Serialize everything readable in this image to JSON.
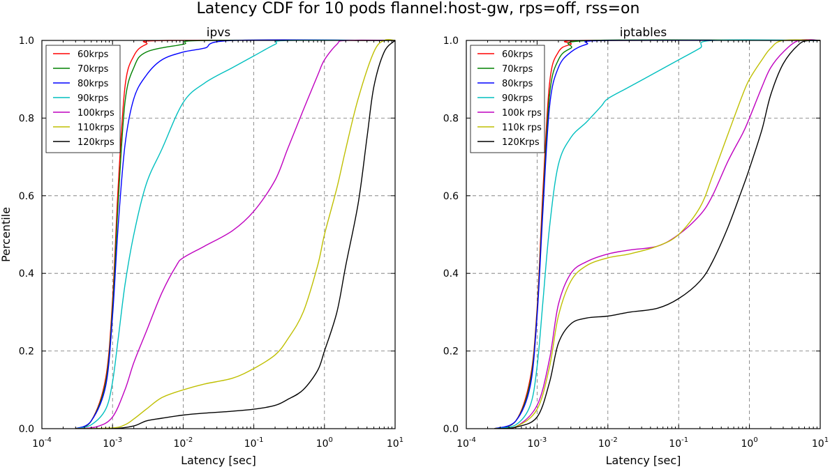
{
  "figure": {
    "title": "Latency CDF for 10 pods flannel:host-gw,  rps=off, rss=on"
  },
  "colors": {
    "red": "#ff0000",
    "green": "#008000",
    "blue": "#0000ff",
    "cyan": "#00bfbf",
    "magenta": "#bf00bf",
    "olive": "#bfbf00",
    "black": "#000000"
  },
  "chart_data": [
    {
      "type": "line",
      "title": "ipvs",
      "xlabel": "Latency [sec]",
      "ylabel": "Percentile",
      "xscale": "log",
      "xlim": [
        0.0001,
        10
      ],
      "ylim": [
        0.0,
        1.0
      ],
      "xticks": [
        "10^-4",
        "10^-3",
        "10^-2",
        "10^-1",
        "10^0",
        "10^1"
      ],
      "yticks": [
        "0.0",
        "0.2",
        "0.4",
        "0.6",
        "0.8",
        "1.0"
      ],
      "grid": true,
      "legend": "top-left",
      "series": [
        {
          "name": "60krps",
          "color": "#ff0000",
          "points": [
            [
              0.0003,
              0
            ],
            [
              0.0005,
              0.02
            ],
            [
              0.0008,
              0.13
            ],
            [
              0.001,
              0.33
            ],
            [
              0.0012,
              0.62
            ],
            [
              0.0015,
              0.88
            ],
            [
              0.002,
              0.96
            ],
            [
              0.003,
              0.99
            ],
            [
              0.006,
              1.0
            ],
            [
              10,
              1.0
            ]
          ]
        },
        {
          "name": "70krps",
          "color": "#008000",
          "points": [
            [
              0.0003,
              0
            ],
            [
              0.0005,
              0.02
            ],
            [
              0.0008,
              0.12
            ],
            [
              0.001,
              0.31
            ],
            [
              0.0012,
              0.58
            ],
            [
              0.0015,
              0.84
            ],
            [
              0.002,
              0.93
            ],
            [
              0.003,
              0.97
            ],
            [
              0.01,
              0.99
            ],
            [
              0.02,
              1.0
            ],
            [
              10,
              1.0
            ]
          ]
        },
        {
          "name": "80krps",
          "color": "#0000ff",
          "points": [
            [
              0.0003,
              0
            ],
            [
              0.0005,
              0.02
            ],
            [
              0.0008,
              0.11
            ],
            [
              0.001,
              0.29
            ],
            [
              0.0012,
              0.52
            ],
            [
              0.0015,
              0.73
            ],
            [
              0.002,
              0.85
            ],
            [
              0.003,
              0.91
            ],
            [
              0.005,
              0.95
            ],
            [
              0.01,
              0.97
            ],
            [
              0.02,
              0.98
            ],
            [
              0.05,
              1.0
            ],
            [
              10,
              1.0
            ]
          ]
        },
        {
          "name": "90krps",
          "color": "#00bfbf",
          "points": [
            [
              0.0003,
              0
            ],
            [
              0.0005,
              0.01
            ],
            [
              0.0008,
              0.05
            ],
            [
              0.001,
              0.12
            ],
            [
              0.0012,
              0.23
            ],
            [
              0.0015,
              0.37
            ],
            [
              0.002,
              0.5
            ],
            [
              0.003,
              0.63
            ],
            [
              0.005,
              0.72
            ],
            [
              0.01,
              0.84
            ],
            [
              0.02,
              0.89
            ],
            [
              0.05,
              0.93
            ],
            [
              0.1,
              0.96
            ],
            [
              0.2,
              0.99
            ],
            [
              0.3,
              1.0
            ],
            [
              10,
              1.0
            ]
          ]
        },
        {
          "name": "100krps",
          "color": "#bf00bf",
          "points": [
            [
              0.0003,
              0
            ],
            [
              0.0006,
              0.005
            ],
            [
              0.001,
              0.03
            ],
            [
              0.0015,
              0.1
            ],
            [
              0.002,
              0.17
            ],
            [
              0.003,
              0.25
            ],
            [
              0.005,
              0.35
            ],
            [
              0.008,
              0.42
            ],
            [
              0.01,
              0.44
            ],
            [
              0.02,
              0.47
            ],
            [
              0.05,
              0.51
            ],
            [
              0.1,
              0.56
            ],
            [
              0.2,
              0.64
            ],
            [
              0.3,
              0.72
            ],
            [
              0.5,
              0.82
            ],
            [
              0.8,
              0.91
            ],
            [
              1.0,
              0.95
            ],
            [
              1.5,
              0.99
            ],
            [
              2,
              1.0
            ],
            [
              10,
              1.0
            ]
          ]
        },
        {
          "name": "110krps",
          "color": "#bfbf00",
          "points": [
            [
              0.0003,
              0
            ],
            [
              0.001,
              0.002
            ],
            [
              0.0015,
              0.01
            ],
            [
              0.002,
              0.025
            ],
            [
              0.003,
              0.05
            ],
            [
              0.005,
              0.08
            ],
            [
              0.01,
              0.1
            ],
            [
              0.02,
              0.115
            ],
            [
              0.05,
              0.13
            ],
            [
              0.1,
              0.155
            ],
            [
              0.2,
              0.19
            ],
            [
              0.3,
              0.23
            ],
            [
              0.5,
              0.3
            ],
            [
              0.8,
              0.42
            ],
            [
              1.0,
              0.5
            ],
            [
              1.5,
              0.62
            ],
            [
              2,
              0.72
            ],
            [
              3,
              0.85
            ],
            [
              5,
              0.97
            ],
            [
              7,
              1.0
            ],
            [
              10,
              1.0
            ]
          ]
        },
        {
          "name": "120krps",
          "color": "#000000",
          "points": [
            [
              0.0003,
              0
            ],
            [
              0.001,
              0
            ],
            [
              0.002,
              0.007
            ],
            [
              0.003,
              0.02
            ],
            [
              0.005,
              0.027
            ],
            [
              0.01,
              0.035
            ],
            [
              0.02,
              0.04
            ],
            [
              0.05,
              0.045
            ],
            [
              0.1,
              0.05
            ],
            [
              0.2,
              0.06
            ],
            [
              0.3,
              0.075
            ],
            [
              0.5,
              0.1
            ],
            [
              0.8,
              0.15
            ],
            [
              1.0,
              0.2
            ],
            [
              1.5,
              0.3
            ],
            [
              2,
              0.42
            ],
            [
              3,
              0.58
            ],
            [
              4,
              0.75
            ],
            [
              5,
              0.88
            ],
            [
              7,
              0.97
            ],
            [
              10,
              1.0
            ]
          ]
        }
      ]
    },
    {
      "type": "line",
      "title": "iptables",
      "xlabel": "Latency [sec]",
      "ylabel": "",
      "xscale": "log",
      "xlim": [
        0.0001,
        10
      ],
      "ylim": [
        0.0,
        1.0
      ],
      "xticks": [
        "10^-4",
        "10^-3",
        "10^-2",
        "10^-1",
        "10^0",
        "10^1"
      ],
      "yticks": [
        "0.0",
        "0.2",
        "0.4",
        "0.6",
        "0.8",
        "1.0"
      ],
      "grid": true,
      "legend": "top-left",
      "series": [
        {
          "name": "60krps",
          "color": "#ff0000",
          "points": [
            [
              0.00025,
              0
            ],
            [
              0.0005,
              0.02
            ],
            [
              0.0008,
              0.13
            ],
            [
              0.001,
              0.31
            ],
            [
              0.0012,
              0.6
            ],
            [
              0.0015,
              0.89
            ],
            [
              0.002,
              0.97
            ],
            [
              0.003,
              0.99
            ],
            [
              0.005,
              1.0
            ],
            [
              10,
              1.0
            ]
          ]
        },
        {
          "name": "70krps",
          "color": "#008000",
          "points": [
            [
              0.00025,
              0
            ],
            [
              0.0005,
              0.02
            ],
            [
              0.0008,
              0.12
            ],
            [
              0.001,
              0.3
            ],
            [
              0.0012,
              0.57
            ],
            [
              0.0015,
              0.86
            ],
            [
              0.002,
              0.95
            ],
            [
              0.003,
              0.98
            ],
            [
              0.006,
              1.0
            ],
            [
              10,
              1.0
            ]
          ]
        },
        {
          "name": "80krps",
          "color": "#0000ff",
          "points": [
            [
              0.00025,
              0
            ],
            [
              0.0005,
              0.02
            ],
            [
              0.0008,
              0.11
            ],
            [
              0.001,
              0.29
            ],
            [
              0.0012,
              0.55
            ],
            [
              0.0015,
              0.83
            ],
            [
              0.002,
              0.93
            ],
            [
              0.003,
              0.97
            ],
            [
              0.005,
              0.99
            ],
            [
              0.01,
              1.0
            ],
            [
              10,
              1.0
            ]
          ]
        },
        {
          "name": "90krps",
          "color": "#00bfbf",
          "points": [
            [
              0.00025,
              0
            ],
            [
              0.0005,
              0.01
            ],
            [
              0.0008,
              0.06
            ],
            [
              0.001,
              0.16
            ],
            [
              0.0012,
              0.32
            ],
            [
              0.0015,
              0.52
            ],
            [
              0.002,
              0.68
            ],
            [
              0.003,
              0.75
            ],
            [
              0.005,
              0.79
            ],
            [
              0.008,
              0.83
            ],
            [
              0.01,
              0.85
            ],
            [
              0.02,
              0.88
            ],
            [
              0.05,
              0.92
            ],
            [
              0.1,
              0.95
            ],
            [
              0.2,
              0.98
            ],
            [
              0.3,
              1.0
            ],
            [
              10,
              1.0
            ]
          ]
        },
        {
          "name": "100k rps",
          "color": "#bf00bf",
          "points": [
            [
              0.00025,
              0
            ],
            [
              0.0005,
              0.005
            ],
            [
              0.001,
              0.06
            ],
            [
              0.0015,
              0.18
            ],
            [
              0.002,
              0.32
            ],
            [
              0.003,
              0.4
            ],
            [
              0.005,
              0.43
            ],
            [
              0.01,
              0.45
            ],
            [
              0.02,
              0.46
            ],
            [
              0.05,
              0.47
            ],
            [
              0.1,
              0.5
            ],
            [
              0.2,
              0.55
            ],
            [
              0.3,
              0.6
            ],
            [
              0.5,
              0.69
            ],
            [
              0.8,
              0.76
            ],
            [
              1.0,
              0.8
            ],
            [
              1.5,
              0.88
            ],
            [
              2,
              0.93
            ],
            [
              3,
              0.97
            ],
            [
              5,
              1.0
            ],
            [
              10,
              1.0
            ]
          ]
        },
        {
          "name": "110k rps",
          "color": "#bfbf00",
          "points": [
            [
              0.00025,
              0
            ],
            [
              0.0005,
              0.005
            ],
            [
              0.001,
              0.05
            ],
            [
              0.0015,
              0.16
            ],
            [
              0.002,
              0.29
            ],
            [
              0.003,
              0.38
            ],
            [
              0.005,
              0.42
            ],
            [
              0.01,
              0.44
            ],
            [
              0.02,
              0.45
            ],
            [
              0.05,
              0.47
            ],
            [
              0.1,
              0.5
            ],
            [
              0.2,
              0.57
            ],
            [
              0.3,
              0.65
            ],
            [
              0.5,
              0.76
            ],
            [
              0.8,
              0.86
            ],
            [
              1.0,
              0.9
            ],
            [
              1.5,
              0.95
            ],
            [
              2,
              0.98
            ],
            [
              3,
              1.0
            ],
            [
              10,
              1.0
            ]
          ]
        },
        {
          "name": "120Krps",
          "color": "#000000",
          "points": [
            [
              0.00025,
              0
            ],
            [
              0.0005,
              0.004
            ],
            [
              0.001,
              0.03
            ],
            [
              0.0015,
              0.12
            ],
            [
              0.002,
              0.22
            ],
            [
              0.003,
              0.27
            ],
            [
              0.005,
              0.285
            ],
            [
              0.01,
              0.29
            ],
            [
              0.02,
              0.3
            ],
            [
              0.05,
              0.31
            ],
            [
              0.1,
              0.335
            ],
            [
              0.2,
              0.38
            ],
            [
              0.3,
              0.43
            ],
            [
              0.5,
              0.52
            ],
            [
              0.8,
              0.62
            ],
            [
              1.0,
              0.67
            ],
            [
              1.5,
              0.77
            ],
            [
              2,
              0.86
            ],
            [
              3,
              0.94
            ],
            [
              5,
              0.99
            ],
            [
              7,
              1.0
            ],
            [
              10,
              1.0
            ]
          ]
        }
      ]
    }
  ]
}
